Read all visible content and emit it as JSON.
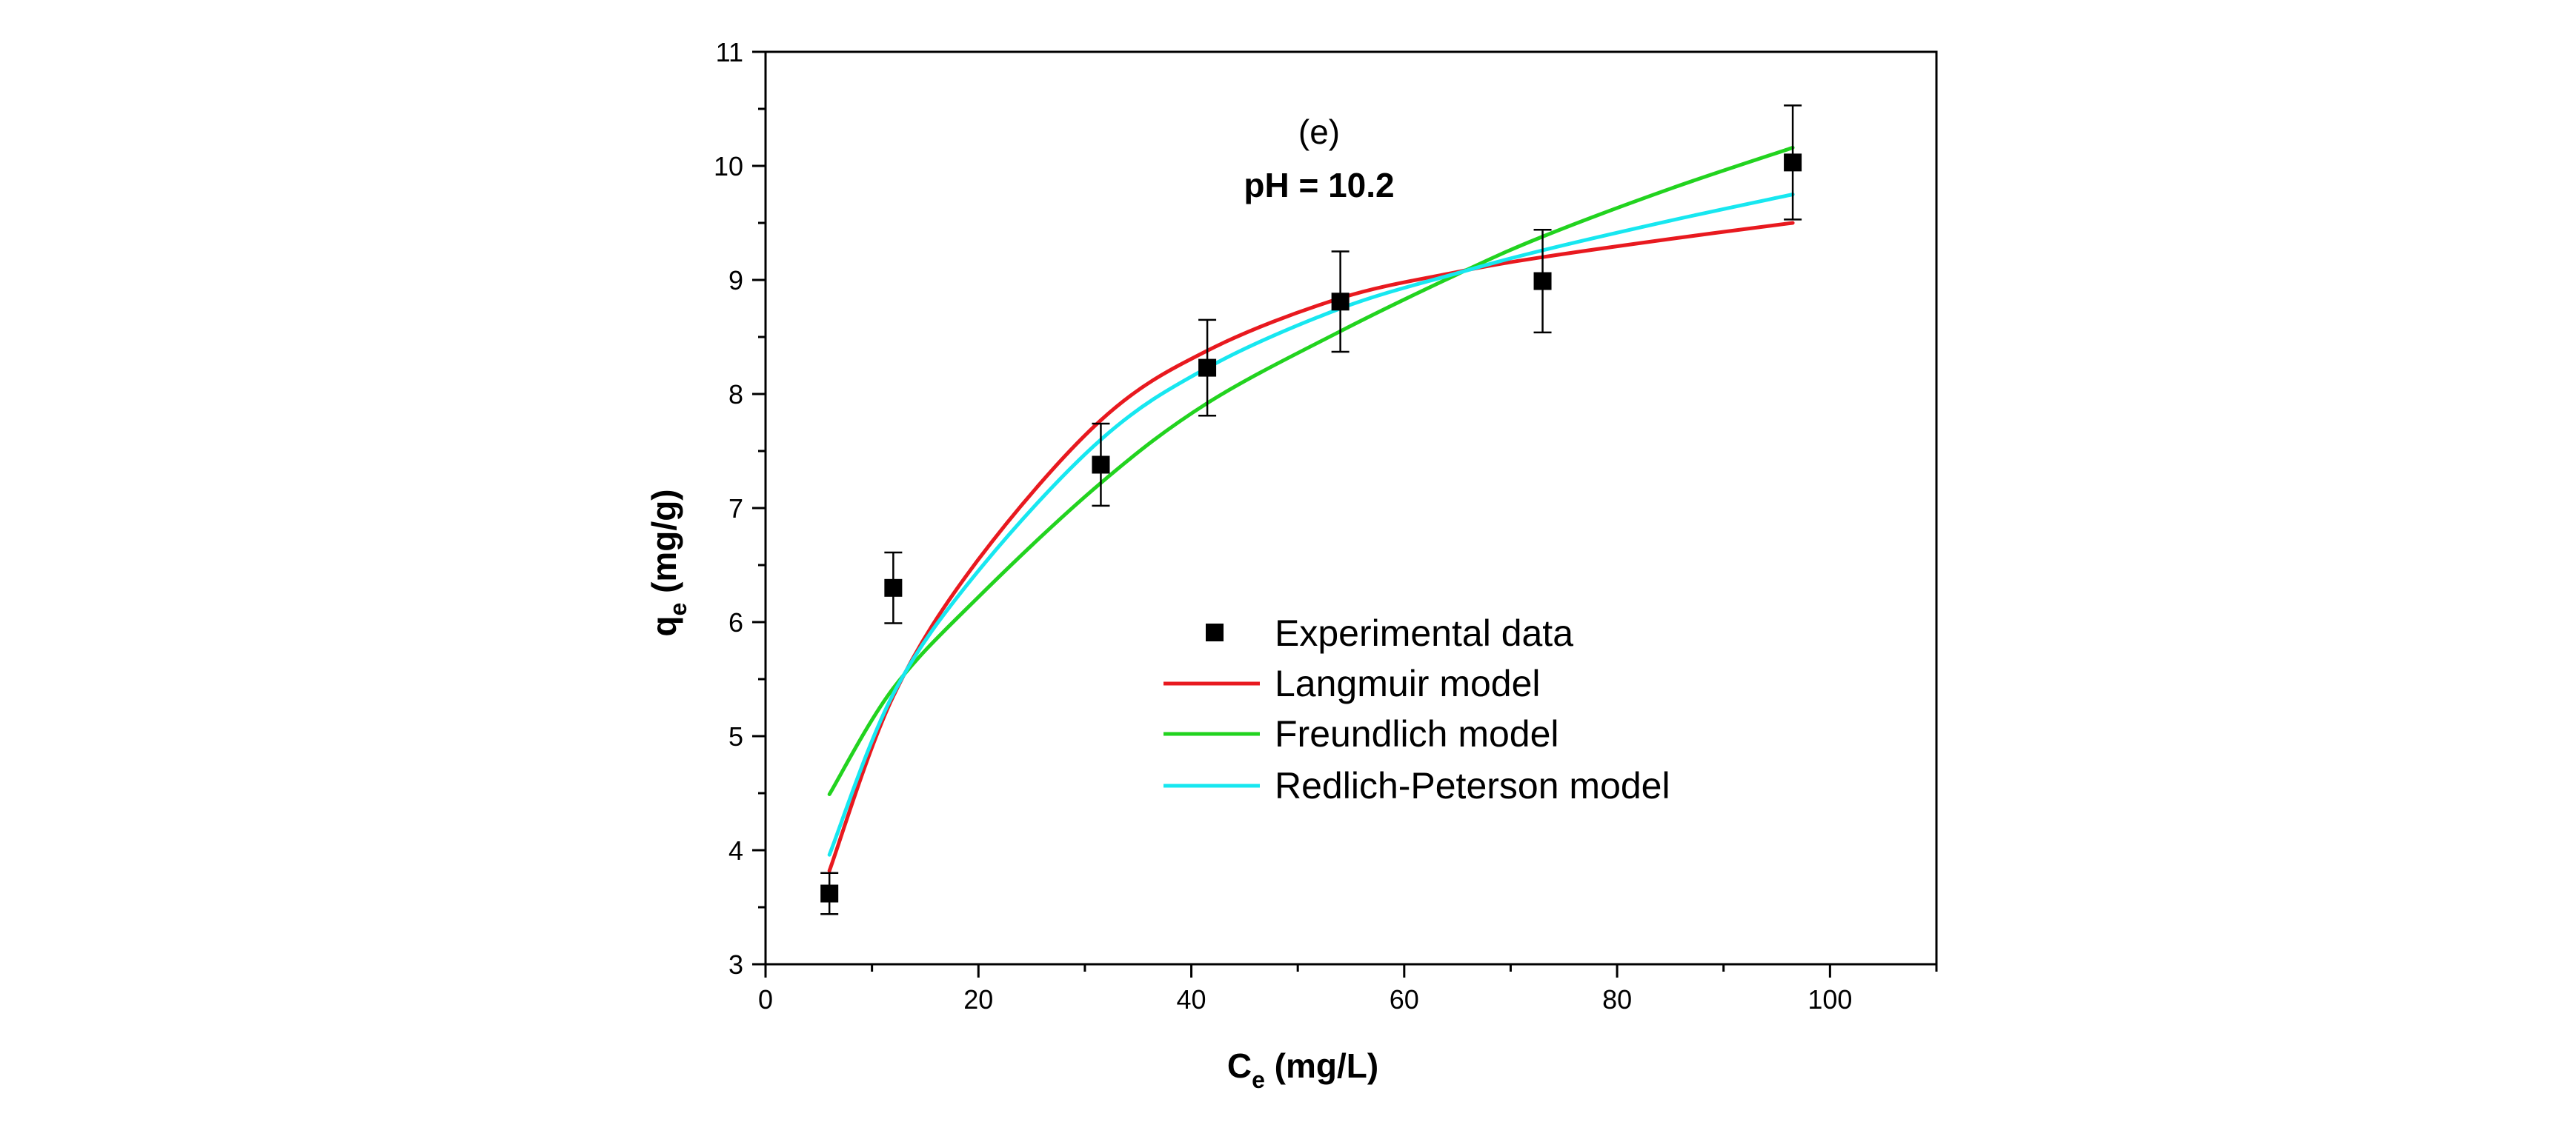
{
  "chart_data": {
    "type": "scatter",
    "xlabel": {
      "main": "C",
      "sub": "e",
      "unit": " (mg/L)"
    },
    "ylabel": {
      "main": "q",
      "sub": "e",
      "unit": " (mg/g)"
    },
    "xlim": [
      0,
      110
    ],
    "ylim": [
      3,
      11
    ],
    "x_ticks": [
      0,
      20,
      40,
      60,
      80,
      100
    ],
    "y_ticks": [
      3,
      4,
      5,
      6,
      7,
      8,
      9,
      10,
      11
    ],
    "grid": false,
    "annotations": [
      "(e)",
      "pH = 10.2"
    ],
    "legend_position": "center",
    "series": [
      {
        "name": "Experimental data",
        "kind": "scatter",
        "marker": "square",
        "color": "#000000",
        "x": [
          6.0,
          12.0,
          31.5,
          41.5,
          54.0,
          73.0,
          96.5
        ],
        "y": [
          3.62,
          6.3,
          7.38,
          8.23,
          8.81,
          8.99,
          10.03
        ],
        "error": [
          0.18,
          0.31,
          0.36,
          0.42,
          0.44,
          0.45,
          0.5
        ]
      },
      {
        "name": "Langmuir model",
        "kind": "line",
        "color": "#e8191f",
        "x": [
          6.0,
          12.0,
          20.0,
          31.5,
          41.5,
          54.0,
          65.0,
          73.0,
          85.0,
          96.5
        ],
        "y": [
          3.82,
          5.35,
          6.55,
          7.77,
          8.38,
          8.84,
          9.07,
          9.2,
          9.36,
          9.5
        ]
      },
      {
        "name": "Freundlich model",
        "kind": "line",
        "color": "#22d31f",
        "x": [
          6.0,
          12.0,
          20.0,
          31.5,
          41.5,
          54.0,
          65.0,
          73.0,
          85.0,
          96.5
        ],
        "y": [
          4.49,
          5.42,
          6.22,
          7.22,
          7.92,
          8.55,
          9.05,
          9.38,
          9.8,
          10.16
        ]
      },
      {
        "name": "Redlich-Peterson model",
        "kind": "line",
        "color": "#17e7f0",
        "x": [
          6.0,
          12.0,
          20.0,
          31.5,
          41.5,
          54.0,
          65.0,
          73.0,
          85.0,
          96.5
        ],
        "y": [
          3.96,
          5.37,
          6.45,
          7.6,
          8.23,
          8.75,
          9.06,
          9.26,
          9.52,
          9.75
        ]
      }
    ]
  }
}
